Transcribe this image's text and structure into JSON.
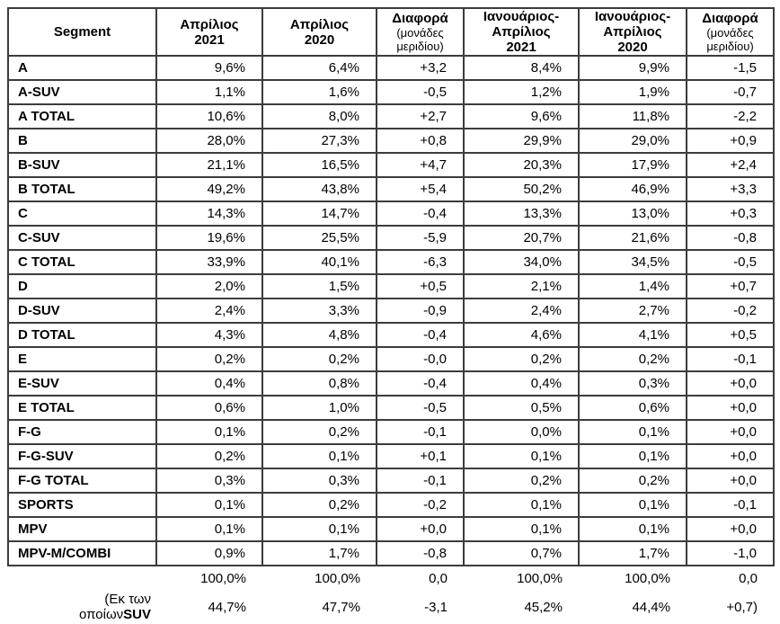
{
  "page": {
    "background": "#ffffff",
    "text_color": "#000000",
    "border_color": "#3c3c3c"
  },
  "table": {
    "columns": [
      {
        "kind": "segment",
        "label": "Segment"
      },
      {
        "kind": "period",
        "lines": [
          "Απρίλιος",
          "2021"
        ]
      },
      {
        "kind": "period",
        "lines": [
          "Απρίλιος",
          "2020"
        ]
      },
      {
        "kind": "diff",
        "title": "Διαφορά",
        "subtitle_lines": [
          "(μονάδες",
          "μεριδίου)"
        ]
      },
      {
        "kind": "period",
        "lines": [
          "Ιανουάριος-",
          "Απρίλιος",
          "2021"
        ]
      },
      {
        "kind": "period",
        "lines": [
          "Ιανουάριος-",
          "Απρίλιος",
          "2020"
        ]
      },
      {
        "kind": "diff",
        "title": "Διαφορά",
        "subtitle_lines": [
          "(μονάδες",
          "μεριδίου)"
        ]
      }
    ],
    "rows": [
      {
        "segment": "A",
        "values": [
          "9,6%",
          "6,4%",
          "+3,2",
          "8,4%",
          "9,9%",
          "-1,5"
        ]
      },
      {
        "segment": "A-SUV",
        "values": [
          "1,1%",
          "1,6%",
          "-0,5",
          "1,2%",
          "1,9%",
          "-0,7"
        ]
      },
      {
        "segment": "A TOTAL",
        "values": [
          "10,6%",
          "8,0%",
          "+2,7",
          "9,6%",
          "11,8%",
          "-2,2"
        ]
      },
      {
        "segment": "B",
        "values": [
          "28,0%",
          "27,3%",
          "+0,8",
          "29,9%",
          "29,0%",
          "+0,9"
        ]
      },
      {
        "segment": "B-SUV",
        "values": [
          "21,1%",
          "16,5%",
          "+4,7",
          "20,3%",
          "17,9%",
          "+2,4"
        ]
      },
      {
        "segment": "B TOTAL",
        "values": [
          "49,2%",
          "43,8%",
          "+5,4",
          "50,2%",
          "46,9%",
          "+3,3"
        ]
      },
      {
        "segment": "C",
        "values": [
          "14,3%",
          "14,7%",
          "-0,4",
          "13,3%",
          "13,0%",
          "+0,3"
        ]
      },
      {
        "segment": "C-SUV",
        "values": [
          "19,6%",
          "25,5%",
          "-5,9",
          "20,7%",
          "21,6%",
          "-0,8"
        ]
      },
      {
        "segment": "C TOTAL",
        "values": [
          "33,9%",
          "40,1%",
          "-6,3",
          "34,0%",
          "34,5%",
          "-0,5"
        ]
      },
      {
        "segment": "D",
        "values": [
          "2,0%",
          "1,5%",
          "+0,5",
          "2,1%",
          "1,4%",
          "+0,7"
        ]
      },
      {
        "segment": "D-SUV",
        "values": [
          "2,4%",
          "3,3%",
          "-0,9",
          "2,4%",
          "2,7%",
          "-0,2"
        ]
      },
      {
        "segment": "D TOTAL",
        "values": [
          "4,3%",
          "4,8%",
          "-0,4",
          "4,6%",
          "4,1%",
          "+0,5"
        ]
      },
      {
        "segment": "E",
        "values": [
          "0,2%",
          "0,2%",
          "-0,0",
          "0,2%",
          "0,2%",
          "-0,1"
        ]
      },
      {
        "segment": "E-SUV",
        "values": [
          "0,4%",
          "0,8%",
          "-0,4",
          "0,4%",
          "0,3%",
          "+0,0"
        ]
      },
      {
        "segment": "E TOTAL",
        "values": [
          "0,6%",
          "1,0%",
          "-0,5",
          "0,5%",
          "0,6%",
          "+0,0"
        ]
      },
      {
        "segment": "F-G",
        "values": [
          "0,1%",
          "0,2%",
          "-0,1",
          "0,0%",
          "0,1%",
          "+0,0"
        ]
      },
      {
        "segment": "F-G-SUV",
        "values": [
          "0,2%",
          "0,1%",
          "+0,1",
          "0,1%",
          "0,1%",
          "+0,0"
        ]
      },
      {
        "segment": "F-G TOTAL",
        "values": [
          "0,3%",
          "0,3%",
          "-0,1",
          "0,2%",
          "0,2%",
          "+0,0"
        ]
      },
      {
        "segment": "SPORTS",
        "values": [
          "0,1%",
          "0,2%",
          "-0,2",
          "0,1%",
          "0,1%",
          "-0,1"
        ]
      },
      {
        "segment": "MPV",
        "values": [
          "0,1%",
          "0,1%",
          "+0,0",
          "0,1%",
          "0,1%",
          "+0,0"
        ]
      },
      {
        "segment": "MPV-M/COMBI",
        "values": [
          "0,9%",
          "1,7%",
          "-0,8",
          "0,7%",
          "1,7%",
          "-1,0"
        ]
      }
    ],
    "footer": {
      "total_row": {
        "values": [
          "100,0%",
          "100,0%",
          "0,0",
          "100,0%",
          "100,0%",
          "0,0"
        ]
      },
      "suv_row": {
        "label_line1": "(Εκ των",
        "label_line2_regular": "οποίων",
        "label_line2_bold": "SUV",
        "values": [
          "44,7%",
          "47,7%",
          "-3,1",
          "45,2%",
          "44,4%",
          "+0,7)"
        ]
      }
    }
  }
}
